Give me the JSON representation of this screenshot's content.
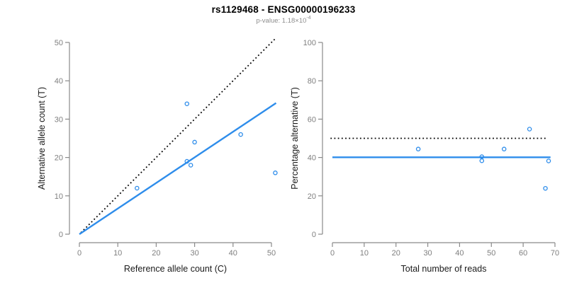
{
  "header": {
    "title": "rs1129468 - ENSG00000196233",
    "subtitle_label": "p-value: ",
    "subtitle_mantissa": "1.18×10",
    "subtitle_exponent": "-4"
  },
  "colors": {
    "accent_blue": "#2E8DEB",
    "dotted_line_black": "#000000",
    "axis_line_gray": "#8a8a8a",
    "tick_label_gray": "#7f7f7f",
    "axis_title_dark": "#1a1a1a"
  },
  "chart_data": [
    {
      "type": "scatter",
      "title": "",
      "xlabel": "Reference allele count (C)",
      "ylabel": "Alternative allele count (T)",
      "xlim": [
        0,
        50
      ],
      "ylim": [
        0,
        50
      ],
      "xticks": [
        0,
        10,
        20,
        30,
        40,
        50
      ],
      "yticks": [
        0,
        10,
        20,
        30,
        40,
        50
      ],
      "grid": false,
      "legend": "none",
      "points": [
        [
          15,
          12
        ],
        [
          28,
          34
        ],
        [
          28,
          19
        ],
        [
          29,
          18
        ],
        [
          30,
          24
        ],
        [
          42,
          26
        ],
        [
          51,
          16
        ]
      ],
      "lines": [
        {
          "name": "identity-line",
          "style": "dotted",
          "color": "#000000",
          "from": [
            0.4,
            0.4
          ],
          "to": [
            51.0,
            51.0
          ]
        },
        {
          "name": "fit-line",
          "style": "solid",
          "color": "#2E8DEB",
          "from": [
            0,
            0
          ],
          "to": [
            51.2,
            34.2
          ]
        }
      ]
    },
    {
      "type": "scatter",
      "title": "",
      "xlabel": "Total number of reads",
      "ylabel": "Percentage alternative (T)",
      "xlim": [
        0,
        70
      ],
      "ylim": [
        0,
        100
      ],
      "xticks": [
        0,
        10,
        20,
        30,
        40,
        50,
        60,
        70
      ],
      "yticks": [
        0,
        20,
        40,
        60,
        80,
        100
      ],
      "grid": false,
      "legend": "none",
      "points": [
        [
          27,
          44.4
        ],
        [
          47,
          40.4
        ],
        [
          47,
          38.3
        ],
        [
          54,
          44.4
        ],
        [
          62,
          54.8
        ],
        [
          67,
          23.9
        ],
        [
          68,
          38.2
        ]
      ],
      "lines": [
        {
          "name": "fifty-percent-line",
          "style": "dotted",
          "color": "#000000",
          "from": [
            -0.6,
            50
          ],
          "to": [
            67.2,
            50
          ]
        },
        {
          "name": "mean-percentage-line",
          "style": "solid",
          "color": "#2E8DEB",
          "from": [
            0,
            40.1
          ],
          "to": [
            68.6,
            40.1
          ]
        }
      ]
    }
  ]
}
